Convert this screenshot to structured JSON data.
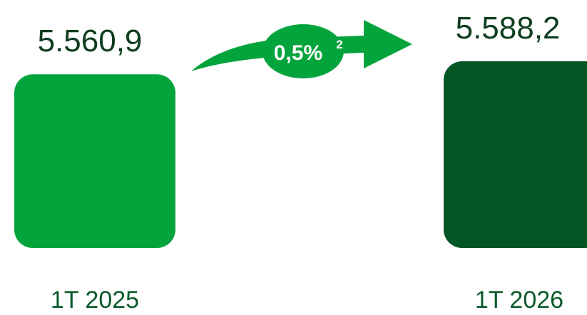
{
  "chart_data": {
    "type": "bar",
    "categories": [
      "1T 2025",
      "1T 2026"
    ],
    "values": [
      5560.9,
      5588.2
    ],
    "value_labels": [
      "5.560,9",
      "5.588,2"
    ],
    "bar_colors": [
      "#04a43c",
      "#035524"
    ],
    "growth": {
      "label": "0,5%",
      "superscript": "2",
      "color": "#04a43c"
    }
  }
}
